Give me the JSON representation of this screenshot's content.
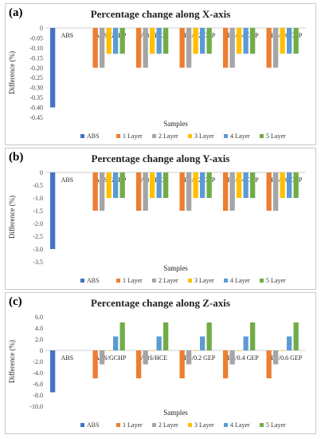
{
  "chart_data": [
    {
      "type": "bar",
      "tag": "(a)",
      "title": "Percentage change along X-axis",
      "xlabel": "Samples",
      "ylabel": "Difference (%)",
      "ylim": [
        -0.45,
        0
      ],
      "yticks": [
        "0",
        "-0.05",
        "-0.10",
        "-0.15",
        "-0.20",
        "-0.25",
        "-0.30",
        "-0.35",
        "-0.40",
        "-0.45"
      ],
      "ytick_values": [
        0,
        -0.05,
        -0.1,
        -0.15,
        -0.2,
        -0.25,
        -0.3,
        -0.35,
        -0.4,
        -0.45
      ],
      "categories": [
        "ABS",
        "ABS/GCHP",
        "ABS/HCE",
        "ABS/0.2 GEP",
        "ABS/0.4 GEP",
        "ABS/0.6 GEP"
      ],
      "series": [
        {
          "name": "ABS",
          "color": "#4472c4",
          "values": [
            -0.4,
            null,
            null,
            null,
            null,
            null
          ]
        },
        {
          "name": "1 Layer",
          "color": "#ed7d31",
          "values": [
            null,
            -0.2,
            -0.2,
            -0.2,
            -0.2,
            -0.2
          ]
        },
        {
          "name": "2 Layer",
          "color": "#a5a5a5",
          "values": [
            null,
            -0.2,
            -0.2,
            -0.2,
            -0.2,
            -0.2
          ]
        },
        {
          "name": "3 Layer",
          "color": "#ffc000",
          "values": [
            null,
            -0.13,
            -0.13,
            -0.13,
            -0.13,
            -0.13
          ]
        },
        {
          "name": "4 Layer",
          "color": "#5b9bd5",
          "values": [
            null,
            -0.13,
            -0.13,
            -0.13,
            -0.13,
            -0.13
          ]
        },
        {
          "name": "5 Layer",
          "color": "#70ad47",
          "values": [
            null,
            -0.13,
            -0.13,
            -0.13,
            -0.13,
            -0.13
          ]
        }
      ]
    },
    {
      "type": "bar",
      "tag": "(b)",
      "title": "Percentage change along Y-axis",
      "xlabel": "Samples",
      "ylabel": "Difference (%)",
      "ylim": [
        -3.5,
        0
      ],
      "yticks": [
        "0",
        "-0.5",
        "-1.0",
        "-1.5",
        "-2.0",
        "-2.5",
        "-3.0",
        "-3.5"
      ],
      "ytick_values": [
        0,
        -0.5,
        -1.0,
        -1.5,
        -2.0,
        -2.5,
        -3.0,
        -3.5
      ],
      "categories": [
        "ABS",
        "ABS/GCHP",
        "ABS/HCE",
        "ABS/0.2 GEP",
        "ABS/0.4 GEP",
        "ABS/0.6 GEP"
      ],
      "series": [
        {
          "name": "ABS",
          "color": "#4472c4",
          "values": [
            -3.0,
            null,
            null,
            null,
            null,
            null
          ]
        },
        {
          "name": "1 Layer",
          "color": "#ed7d31",
          "values": [
            null,
            -1.5,
            -1.5,
            -1.5,
            -1.5,
            -1.5
          ]
        },
        {
          "name": "2 Layer",
          "color": "#a5a5a5",
          "values": [
            null,
            -1.5,
            -1.5,
            -1.5,
            -1.5,
            -1.5
          ]
        },
        {
          "name": "3 Layer",
          "color": "#ffc000",
          "values": [
            null,
            -1.0,
            -1.0,
            -1.0,
            -1.0,
            -1.0
          ]
        },
        {
          "name": "4 Layer",
          "color": "#5b9bd5",
          "values": [
            null,
            -1.0,
            -1.0,
            -1.0,
            -1.0,
            -1.0
          ]
        },
        {
          "name": "5 Layer",
          "color": "#70ad47",
          "values": [
            null,
            -1.0,
            -1.0,
            -1.0,
            -1.0,
            -1.0
          ]
        }
      ]
    },
    {
      "type": "bar",
      "tag": "(c)",
      "title": "Percentage change along Z-axis",
      "xlabel": "Samples",
      "ylabel": "Difference (%)",
      "ylim": [
        -10,
        6
      ],
      "yticks": [
        "6.0",
        "4.0",
        "2.0",
        "0",
        "-2.0",
        "-4.0",
        "-6.0",
        "-8.0",
        "-10.0"
      ],
      "ytick_values": [
        6,
        4,
        2,
        0,
        -2,
        -4,
        -6,
        -8,
        -10
      ],
      "categories": [
        "ABS",
        "ABS/GCHP",
        "ABS/HCE",
        "ABS/0.2 GEP",
        "ABS/0.4 GEP",
        "ABS/0.6 GEP"
      ],
      "series": [
        {
          "name": "ABS",
          "color": "#4472c4",
          "values": [
            -7.5,
            null,
            null,
            null,
            null,
            null
          ]
        },
        {
          "name": "1 Layer",
          "color": "#ed7d31",
          "values": [
            null,
            -5.0,
            -5.0,
            -5.0,
            -5.0,
            -5.0
          ]
        },
        {
          "name": "2 Layer",
          "color": "#a5a5a5",
          "values": [
            null,
            -2.5,
            -2.5,
            -2.5,
            -2.5,
            -2.5
          ]
        },
        {
          "name": "3 Layer",
          "color": "#ffc000",
          "values": [
            null,
            0,
            0,
            0,
            0,
            0
          ]
        },
        {
          "name": "4 Layer",
          "color": "#5b9bd5",
          "values": [
            null,
            2.5,
            2.5,
            2.5,
            2.5,
            2.5
          ]
        },
        {
          "name": "5 Layer",
          "color": "#70ad47",
          "values": [
            null,
            5.0,
            5.0,
            5.0,
            5.0,
            5.0
          ]
        }
      ]
    }
  ]
}
